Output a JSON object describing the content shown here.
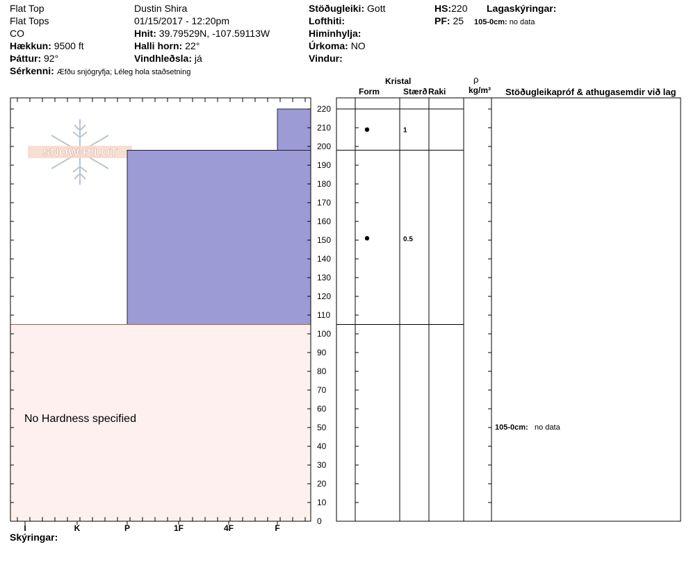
{
  "header": {
    "location": "Flat Top",
    "range": "Flat Tops",
    "state": "CO",
    "elevation_label": "Hækkun:",
    "elevation_value": "9500 ft",
    "aspect_label": "Þáttur:",
    "aspect_value": "92°",
    "features_label": "Sérkenni:",
    "features_value": "Æfðu snjógryfja;  Léleg hola staðsetning",
    "observer": "Dustin  Shira",
    "datetime": "01/15/2017 - 12:20pm",
    "coords_label": "Hnit:",
    "coords_value": "39.79529N, -107.59113W",
    "slope_label": "Halli horn:",
    "slope_value": "22°",
    "wind_loading_label": "Vindhleðsla:",
    "wind_loading_value": "já",
    "stability_label": "Stöðugleiki:",
    "stability_value": "Gott",
    "air_temp_label": "Lofthiti:",
    "sky_label": "Himinhylja:",
    "precip_label": "Úrkoma:",
    "precip_value": "NO",
    "wind_label": "Vindur:",
    "hs_label": "HS:",
    "hs_value": "220",
    "pf_label": "PF:",
    "pf_value": "25",
    "layer_notes_label": "Lagaskýringar:",
    "layer_note_range": "105-0cm:",
    "layer_note_text": "no data"
  },
  "logo_text": "SNOW PILOT",
  "columns": {
    "crystal": "Kristal",
    "form": "Form",
    "size": "Stærð",
    "moisture": "Raki",
    "density_symbol": "ρ",
    "density_unit": "kg/m³",
    "comments": "Stöðugleikapróf & athugasemdir við lag"
  },
  "comment_entry": {
    "range": "105-0cm:",
    "text": "no data"
  },
  "footer": {
    "notes_label": "Skýringar:"
  },
  "chart_data": {
    "type": "bar",
    "orientation": "horizontal",
    "x_axis_categories": [
      "I",
      "K",
      "P",
      "1F",
      "4F",
      "F"
    ],
    "y_axis": {
      "label": "",
      "min": 0,
      "max": 220,
      "ticks": [
        0,
        10,
        20,
        30,
        40,
        50,
        60,
        70,
        80,
        90,
        100,
        110,
        120,
        130,
        140,
        150,
        160,
        170,
        180,
        190,
        200,
        210,
        220
      ]
    },
    "layers": [
      {
        "top_cm": 220,
        "bottom_cm": 198,
        "hardness": "F",
        "color": "#9c9bd6"
      },
      {
        "top_cm": 198,
        "bottom_cm": 105,
        "hardness": "P",
        "color": "#9c9bd6"
      },
      {
        "top_cm": 105,
        "bottom_cm": 0,
        "hardness": null,
        "color": "#fff0f0"
      }
    ],
    "no_hardness_text": "No Hardness specified",
    "layer_boundaries_cm": [
      220,
      198,
      105
    ],
    "grains": [
      {
        "depth_cm": 209,
        "form_symbol": "●",
        "size": "1"
      },
      {
        "depth_cm": 151,
        "form_symbol": "●",
        "size": "0.5"
      }
    ]
  }
}
